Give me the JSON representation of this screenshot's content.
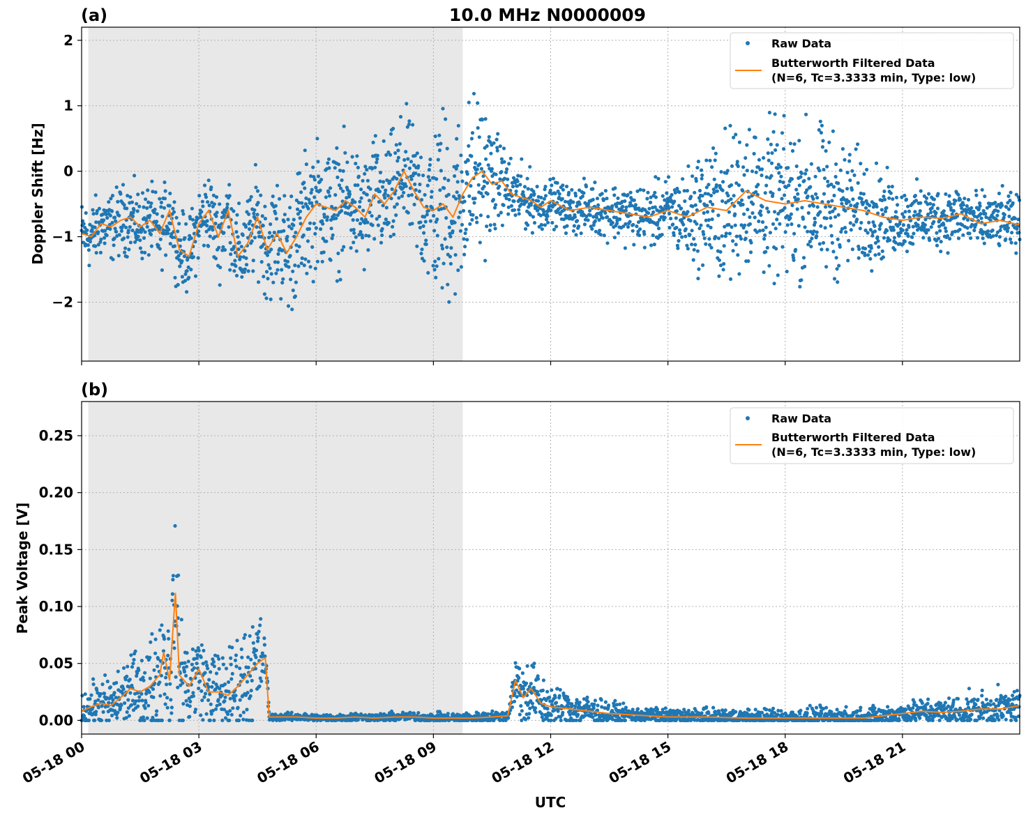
{
  "chart_data": [
    {
      "panel": "(a)",
      "type": "scatter",
      "title": "10.0 MHz N0000009",
      "ylabel": "Doppler Shift [Hz]",
      "xlabel": "",
      "xlim_hours": [
        0,
        24
      ],
      "ylim": [
        -2.9,
        2.2
      ],
      "yticks": [
        {
          "value": 2,
          "label": "2"
        },
        {
          "value": 1,
          "label": "1"
        },
        {
          "value": 0,
          "label": "0"
        },
        {
          "value": -1,
          "label": "−1"
        },
        {
          "value": -2,
          "label": "−2"
        }
      ],
      "shaded_region_hours": [
        0.17,
        9.75
      ],
      "grid": true,
      "legend_placement": "upper-right",
      "legend": {
        "raw": "Raw Data",
        "filtered_line1": "Butterworth Filtered Data",
        "filtered_line2": "(N=6, Tc=3.3333 min, Type: low)"
      },
      "series": [
        {
          "name": "Butterworth Filtered Data (N=6, Tc=3.3333 min, Type: low)",
          "kind": "line",
          "color": "#ff7f0e",
          "x_hours": [
            0.0,
            0.25,
            0.5,
            0.75,
            1.0,
            1.25,
            1.5,
            1.75,
            2.0,
            2.25,
            2.5,
            2.75,
            3.0,
            3.25,
            3.5,
            3.75,
            4.0,
            4.25,
            4.5,
            4.75,
            5.0,
            5.25,
            5.5,
            5.75,
            6.0,
            6.25,
            6.5,
            6.75,
            7.0,
            7.25,
            7.5,
            7.75,
            8.0,
            8.25,
            8.5,
            8.75,
            9.0,
            9.25,
            9.5,
            9.75,
            10.0,
            10.25,
            10.5,
            10.75,
            11.0,
            11.25,
            11.5,
            11.75,
            12.0,
            12.5,
            13.0,
            13.5,
            14.0,
            14.5,
            15.0,
            15.5,
            16.0,
            16.5,
            17.0,
            17.5,
            18.0,
            18.5,
            19.0,
            19.5,
            20.0,
            20.5,
            21.0,
            21.5,
            22.0,
            22.5,
            23.0,
            23.5,
            24.0
          ],
          "y": [
            -0.95,
            -1.0,
            -0.8,
            -0.85,
            -0.75,
            -0.7,
            -0.85,
            -0.75,
            -0.95,
            -0.6,
            -1.2,
            -1.3,
            -0.8,
            -0.6,
            -1.0,
            -0.6,
            -1.3,
            -1.1,
            -0.7,
            -1.2,
            -0.95,
            -1.25,
            -1.0,
            -0.7,
            -0.5,
            -0.55,
            -0.6,
            -0.45,
            -0.55,
            -0.7,
            -0.35,
            -0.5,
            -0.3,
            0.0,
            -0.3,
            -0.55,
            -0.6,
            -0.5,
            -0.7,
            -0.35,
            -0.1,
            0.0,
            -0.2,
            -0.15,
            -0.35,
            -0.4,
            -0.45,
            -0.55,
            -0.45,
            -0.6,
            -0.55,
            -0.6,
            -0.65,
            -0.7,
            -0.6,
            -0.7,
            -0.55,
            -0.6,
            -0.3,
            -0.45,
            -0.5,
            -0.45,
            -0.5,
            -0.55,
            -0.6,
            -0.7,
            -0.75,
            -0.7,
            -0.72,
            -0.65,
            -0.8,
            -0.75,
            -0.82
          ]
        },
        {
          "name": "Raw Data",
          "kind": "scatter",
          "color": "#1f77b4",
          "spread_hours": [
            0,
            3,
            4.5,
            5.5,
            7,
            8.5,
            9.25,
            10.25,
            10.75,
            12,
            15,
            16.5,
            19,
            21,
            24
          ],
          "spread_hz": [
            0.3,
            0.35,
            0.45,
            0.6,
            0.55,
            0.55,
            0.9,
            0.7,
            0.35,
            0.2,
            0.3,
            0.7,
            0.7,
            0.3,
            0.25
          ]
        }
      ]
    },
    {
      "panel": "(b)",
      "type": "scatter",
      "title": "",
      "ylabel": "Peak Voltage [V]",
      "xlabel": "UTC",
      "xlim_hours": [
        0,
        24
      ],
      "ylim": [
        -0.012,
        0.28
      ],
      "yticks": [
        {
          "value": 0.25,
          "label": "0.25"
        },
        {
          "value": 0.2,
          "label": "0.20"
        },
        {
          "value": 0.15,
          "label": "0.15"
        },
        {
          "value": 0.1,
          "label": "0.10"
        },
        {
          "value": 0.05,
          "label": "0.05"
        },
        {
          "value": 0.0,
          "label": "0.00"
        }
      ],
      "xticks": [
        {
          "hour": 0,
          "label": "05-18 00"
        },
        {
          "hour": 3,
          "label": "05-18 03"
        },
        {
          "hour": 6,
          "label": "05-18 06"
        },
        {
          "hour": 9,
          "label": "05-18 09"
        },
        {
          "hour": 12,
          "label": "05-18 12"
        },
        {
          "hour": 15,
          "label": "05-18 15"
        },
        {
          "hour": 18,
          "label": "05-18 18"
        },
        {
          "hour": 21,
          "label": "05-18 21"
        }
      ],
      "shaded_region_hours": [
        0.17,
        9.75
      ],
      "grid": true,
      "legend_placement": "upper-right",
      "legend": {
        "raw": "Raw Data",
        "filtered_line1": "Butterworth Filtered Data",
        "filtered_line2": "(N=6, Tc=3.3333 min, Type: low)"
      },
      "series": [
        {
          "name": "Butterworth Filtered Data (N=6, Tc=3.3333 min, Type: low)",
          "kind": "line",
          "color": "#ff7f0e",
          "x_hours": [
            0.0,
            0.25,
            0.5,
            0.75,
            1.0,
            1.25,
            1.5,
            1.75,
            2.0,
            2.1,
            2.25,
            2.4,
            2.5,
            2.75,
            3.0,
            3.25,
            3.5,
            3.75,
            4.0,
            4.25,
            4.5,
            4.7,
            4.8,
            5.0,
            5.5,
            6.0,
            6.5,
            7.0,
            7.5,
            8.0,
            8.5,
            9.0,
            9.5,
            10.0,
            10.5,
            10.9,
            11.1,
            11.3,
            11.5,
            11.75,
            12.0,
            12.5,
            13.0,
            13.5,
            14.0,
            15.0,
            16.0,
            17.0,
            18.0,
            19.0,
            20.0,
            20.5,
            21.0,
            21.5,
            22.0,
            22.5,
            23.0,
            23.5,
            24.0
          ],
          "y": [
            0.008,
            0.012,
            0.015,
            0.013,
            0.02,
            0.028,
            0.025,
            0.03,
            0.04,
            0.06,
            0.035,
            0.112,
            0.04,
            0.03,
            0.045,
            0.025,
            0.025,
            0.022,
            0.03,
            0.04,
            0.05,
            0.055,
            0.003,
            0.003,
            0.003,
            0.002,
            0.002,
            0.003,
            0.002,
            0.003,
            0.003,
            0.002,
            0.002,
            0.002,
            0.003,
            0.004,
            0.035,
            0.02,
            0.028,
            0.015,
            0.012,
            0.01,
            0.008,
            0.006,
            0.005,
            0.003,
            0.003,
            0.002,
            0.002,
            0.002,
            0.002,
            0.004,
            0.006,
            0.008,
            0.007,
            0.008,
            0.01,
            0.01,
            0.013
          ]
        },
        {
          "name": "Raw Data",
          "kind": "scatter",
          "color": "#1f77b4",
          "spread_hours": [
            0,
            1.5,
            2.3,
            3,
            4.5,
            4.8,
            10.9,
            11.2,
            12,
            14,
            21,
            24
          ],
          "spread_volts": [
            0.01,
            0.02,
            0.04,
            0.02,
            0.03,
            0.002,
            0.003,
            0.02,
            0.012,
            0.004,
            0.006,
            0.01
          ]
        }
      ]
    }
  ]
}
